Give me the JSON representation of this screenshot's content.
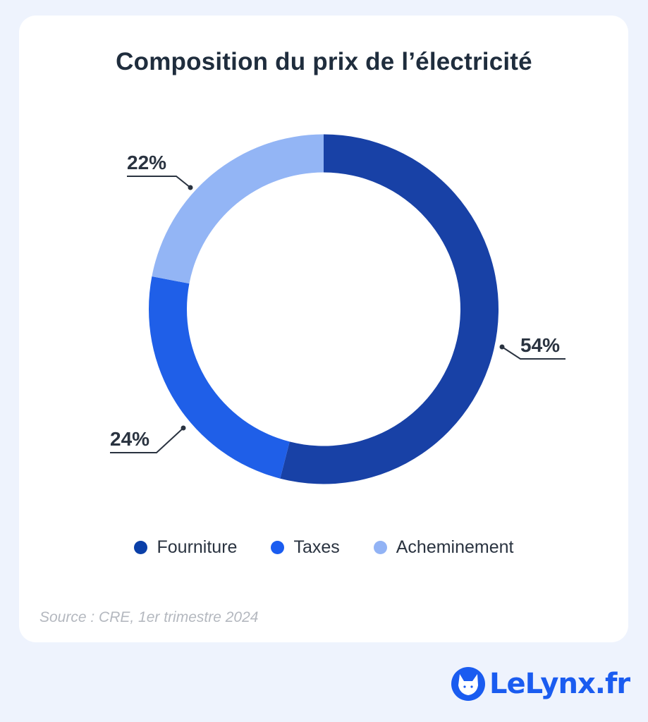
{
  "chart_data": {
    "type": "pie",
    "donut": true,
    "title": "Composition du prix de l’électricité",
    "categories": [
      "Fourniture",
      "Taxes",
      "Acheminement"
    ],
    "values": [
      54,
      24,
      22
    ],
    "labels": [
      "54%",
      "24%",
      "22%"
    ],
    "colors": [
      "#1841a6",
      "#1f5fe8",
      "#93b5f5"
    ],
    "legend_colors": [
      "#0a3fa8",
      "#1a5cf0",
      "#92b3f5"
    ],
    "start_angle": "top",
    "direction": "clockwise",
    "legend_position": "bottom"
  },
  "source": "Source : CRE, 1er trimestre 2024",
  "brand": {
    "name": "LeLynx.fr",
    "color": "#1a5cf0",
    "icon": "lynx-head-icon"
  }
}
